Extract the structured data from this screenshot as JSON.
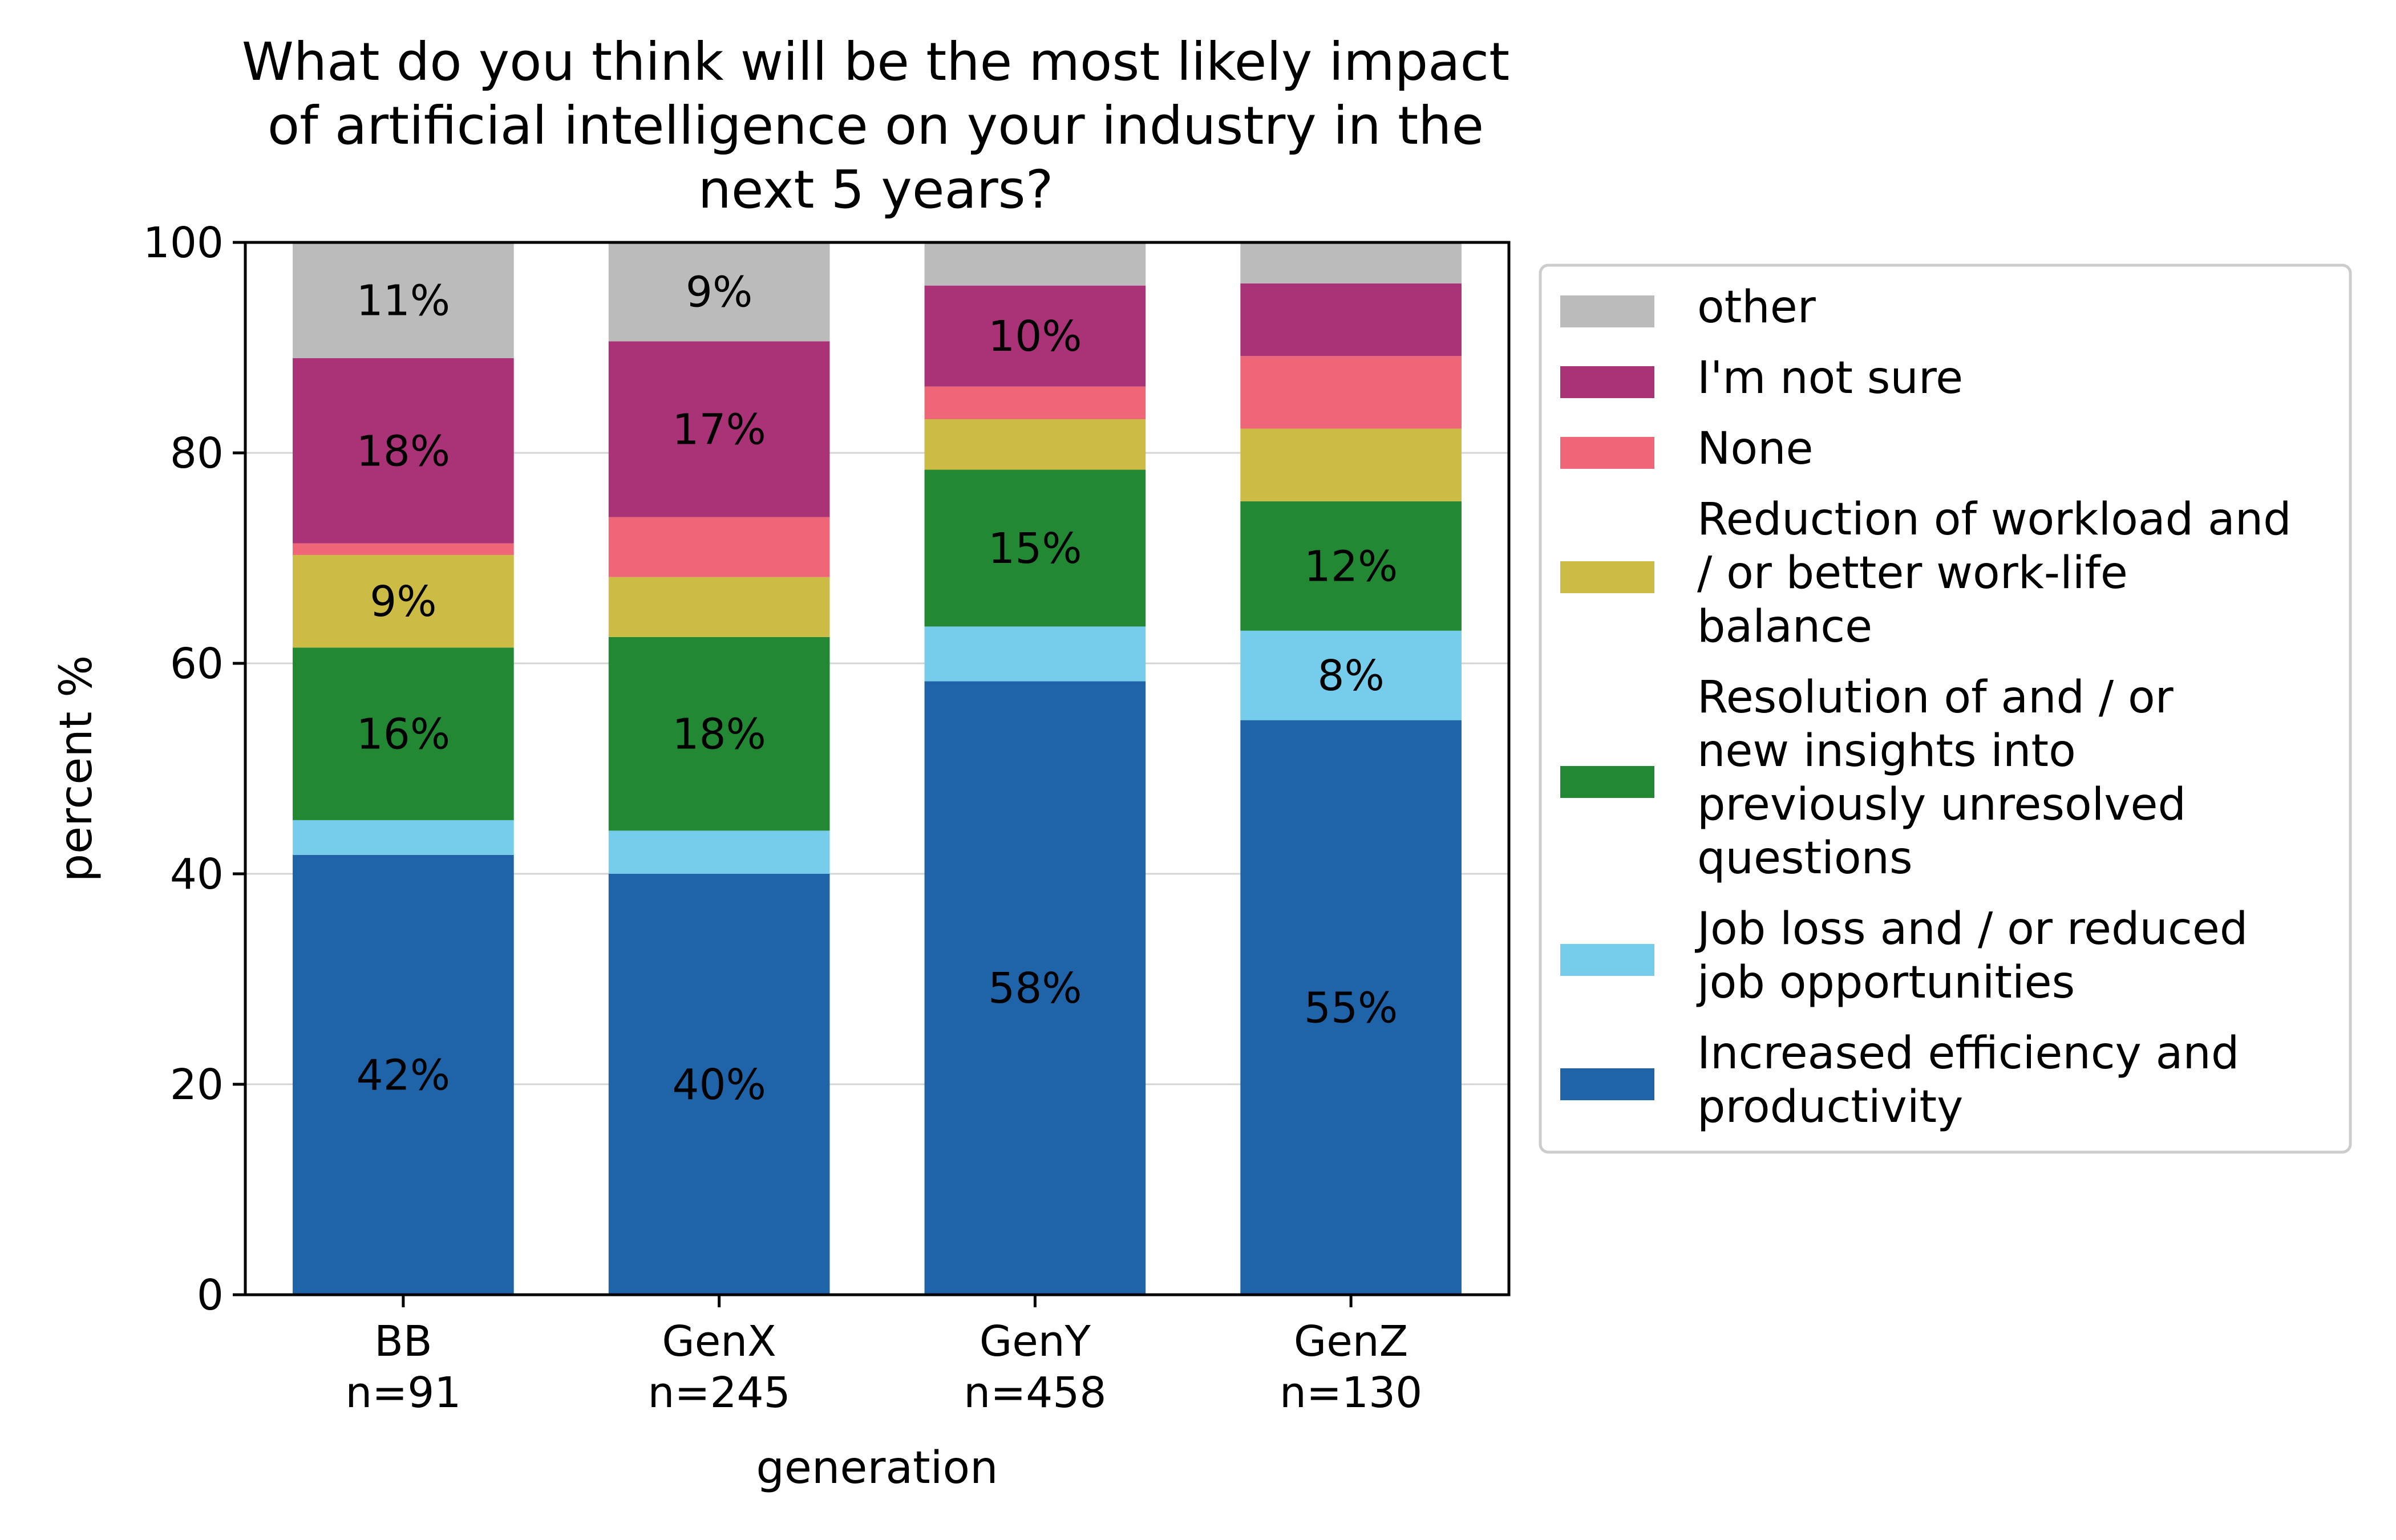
{
  "chart_data": {
    "type": "bar",
    "stacked": true,
    "title_lines": [
      "What do you think will be the most likely impact",
      "of artificial intelligence on your industry in the",
      "next 5 years?"
    ],
    "xlabel": "generation",
    "ylabel": "percent %",
    "ylim": [
      0,
      100
    ],
    "yticks": [
      0,
      20,
      40,
      60,
      80,
      100
    ],
    "grid": "horizontal",
    "legend_position": "outside-right",
    "categories": [
      {
        "name": "BB",
        "n": "n=91"
      },
      {
        "name": "GenX",
        "n": "n=245"
      },
      {
        "name": "GenY",
        "n": "n=458"
      },
      {
        "name": "GenZ",
        "n": "n=130"
      }
    ],
    "series": [
      {
        "name": "Increased efficiency and productivity",
        "legend_lines": [
          "Increased efficiency and",
          "productivity"
        ],
        "color": "#1f63a8",
        "values": [
          41.8,
          40.0,
          58.3,
          54.6
        ],
        "labels": [
          "42%",
          "40%",
          "58%",
          "55%"
        ]
      },
      {
        "name": "Job loss and / or reduced job opportunities",
        "legend_lines": [
          "Job loss and / or reduced",
          "job opportunities"
        ],
        "color": "#76cdeb",
        "values": [
          3.3,
          4.1,
          5.2,
          8.5
        ],
        "labels": [
          "",
          "",
          "",
          "8%"
        ]
      },
      {
        "name": "Resolution of and / or new insights into previously unresolved questions",
        "legend_lines": [
          "Resolution of and / or",
          "new insights into",
          "previously unresolved",
          "questions"
        ],
        "color": "#238833",
        "values": [
          16.4,
          18.4,
          14.9,
          12.3
        ],
        "labels": [
          "16%",
          "18%",
          "15%",
          "12%"
        ]
      },
      {
        "name": "Reduction of workload and / or better work-life balance",
        "legend_lines": [
          "Reduction of workload and",
          "/ or better work-life",
          "balance"
        ],
        "color": "#ccbb44",
        "values": [
          8.8,
          5.7,
          4.8,
          6.9
        ],
        "labels": [
          "9%",
          "",
          "",
          ""
        ]
      },
      {
        "name": "None",
        "legend_lines": [
          "None"
        ],
        "color": "#ee6677",
        "values": [
          1.1,
          5.7,
          3.1,
          6.9
        ],
        "labels": [
          "",
          "",
          "",
          ""
        ]
      },
      {
        "name": "I'm not sure",
        "legend_lines": [
          "I'm not sure"
        ],
        "color": "#aa3377",
        "values": [
          17.6,
          16.7,
          9.6,
          6.9
        ],
        "labels": [
          "18%",
          "17%",
          "10%",
          ""
        ]
      },
      {
        "name": "other",
        "legend_lines": [
          "other"
        ],
        "color": "#bbbbbb",
        "values": [
          11.0,
          9.4,
          4.1,
          3.9
        ],
        "labels": [
          "11%",
          "9%",
          "",
          ""
        ]
      }
    ]
  }
}
